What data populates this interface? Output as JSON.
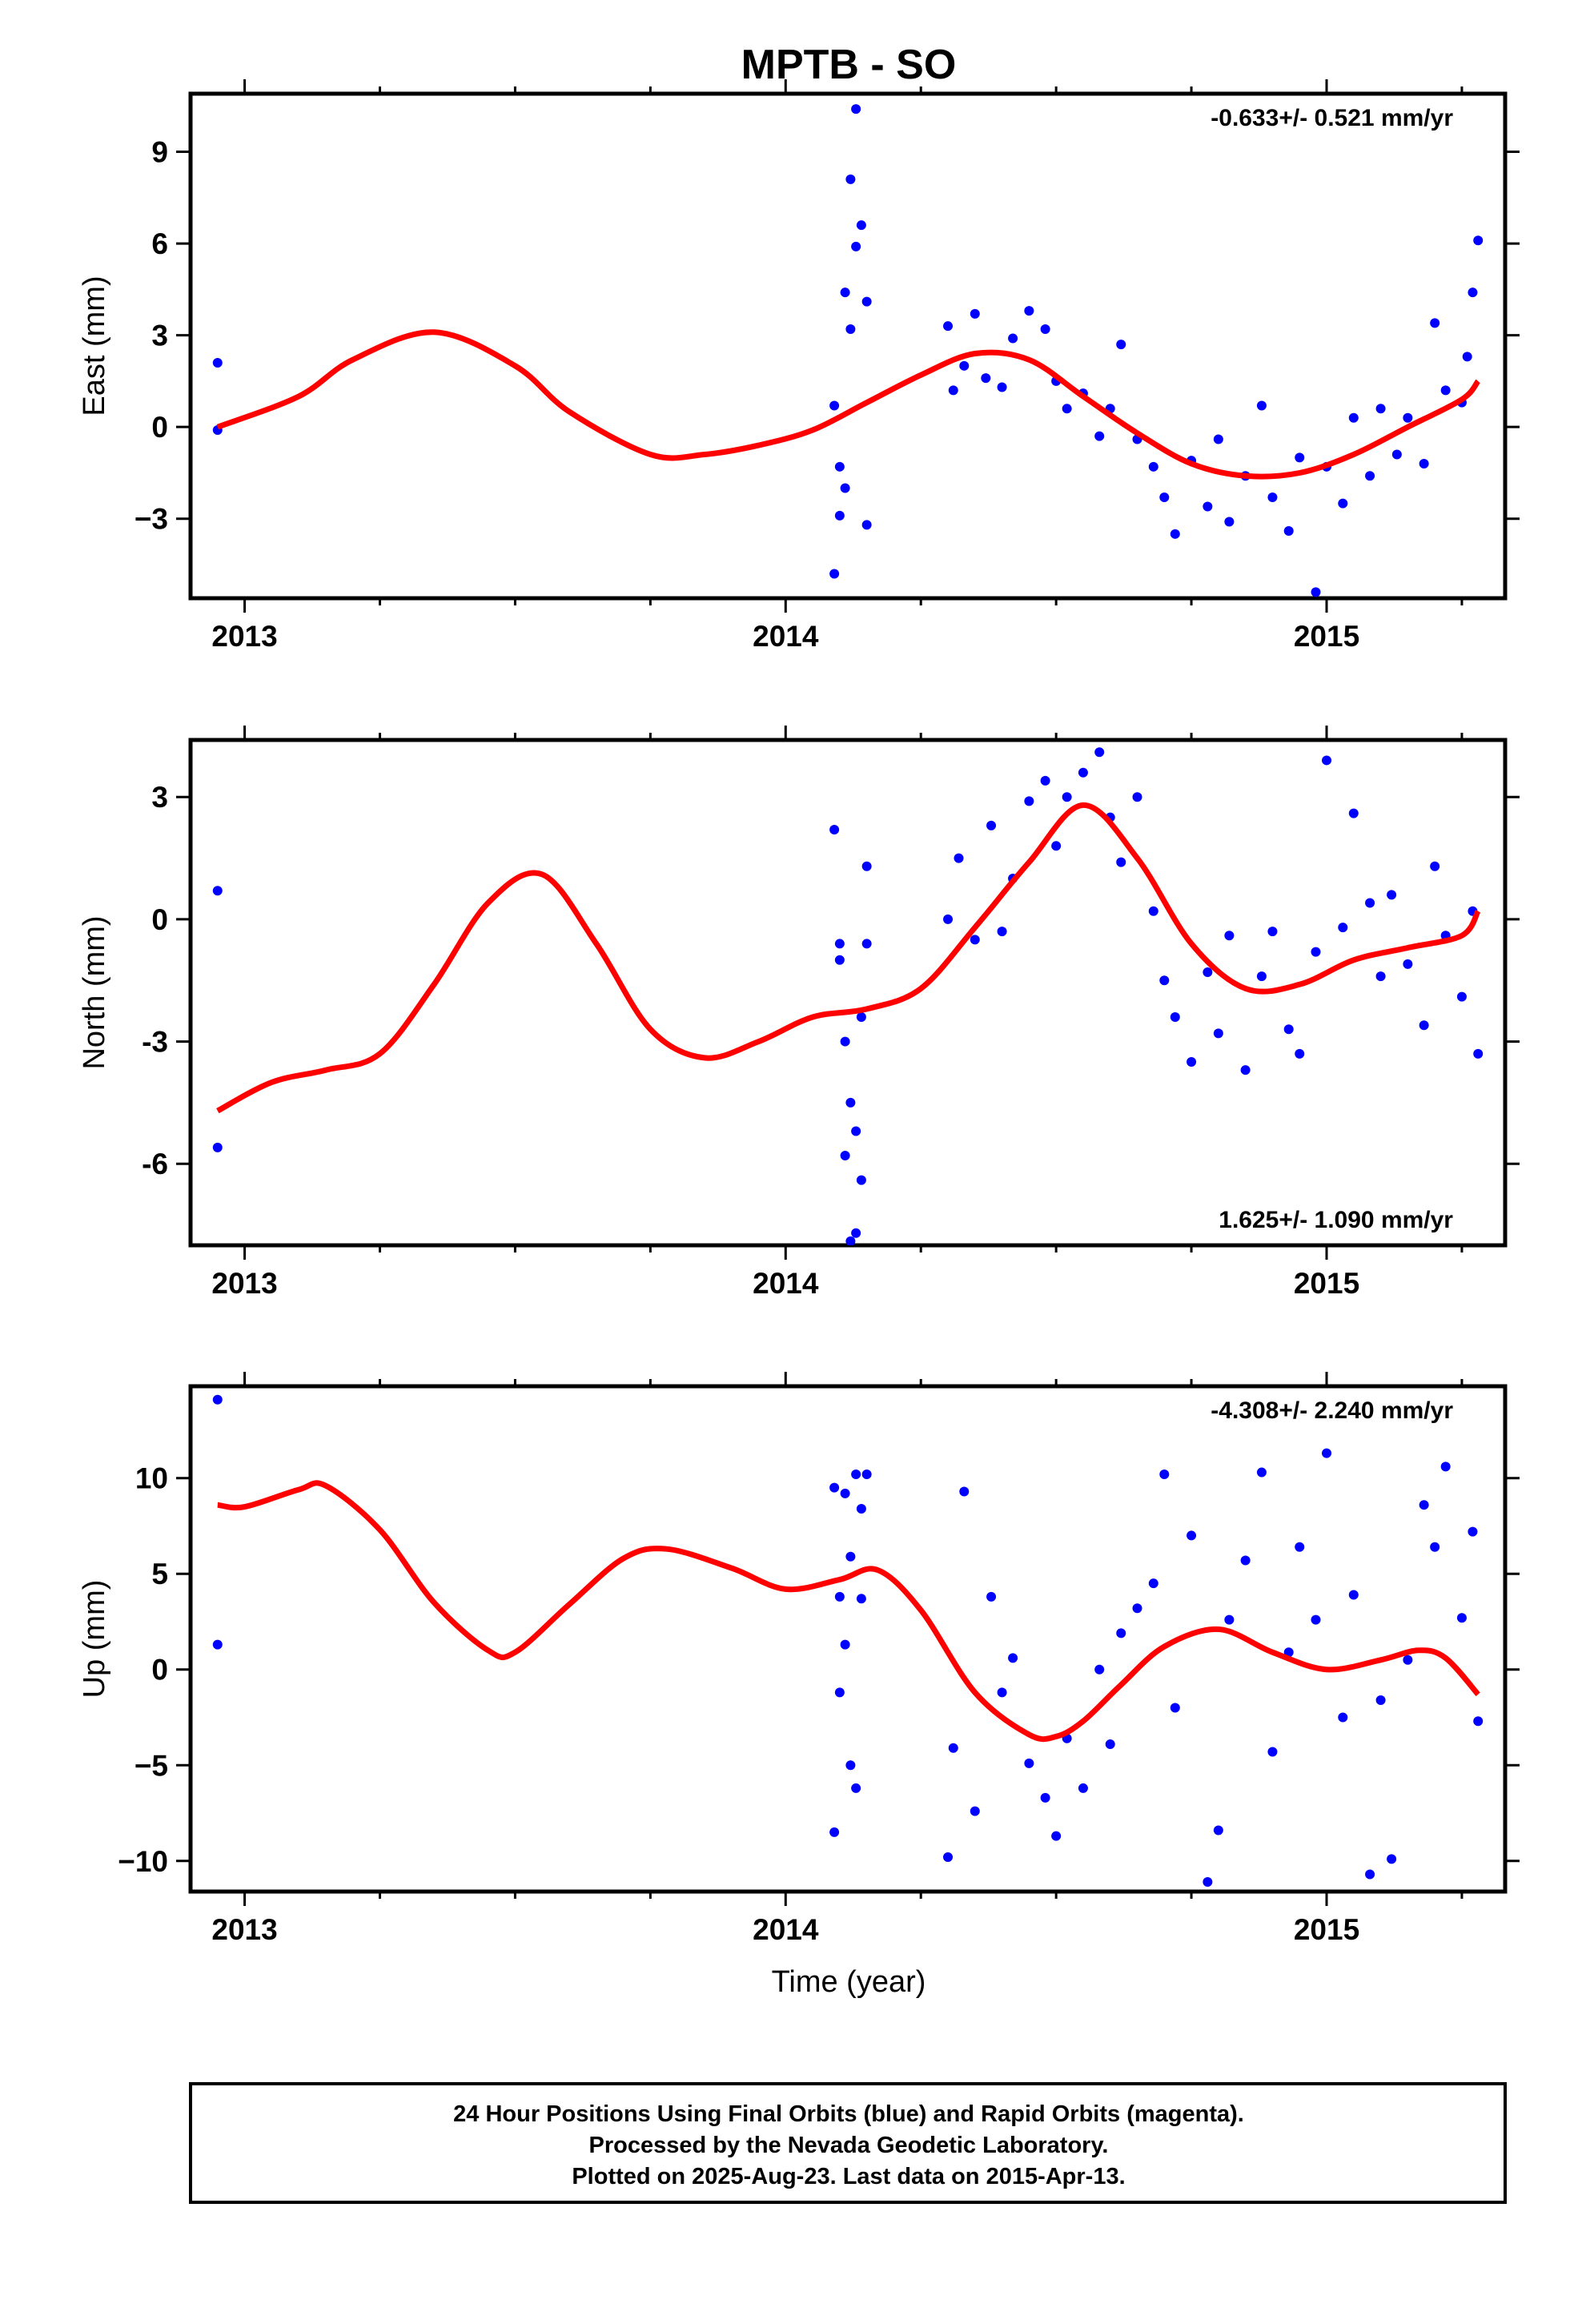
{
  "title": "MPTB - SO",
  "xlabel": "Time (year)",
  "footer": {
    "line1": "24 Hour Positions Using Final Orbits (blue) and Rapid Orbits (magenta).",
    "line2": "Processed by the Nevada Geodetic Laboratory.",
    "line3": "Plotted on 2025-Aug-23. Last data on 2015-Apr-13."
  },
  "colors": {
    "data": "#0000ff",
    "model": "#ff0000",
    "frame": "#000000"
  },
  "chart_data": [
    {
      "type": "scatter",
      "name": "east",
      "ylabel": "East (mm)",
      "rate_label": "-0.633+/- 0.521 mm/yr",
      "rate_position": "top-right",
      "xlim": [
        2012.9,
        2015.33
      ],
      "ylim": [
        -5.6,
        10.9
      ],
      "xticks": [
        2013,
        2014,
        2015
      ],
      "yticks": [
        -3,
        0,
        3,
        6,
        9
      ],
      "ytick_labels": [
        "−3",
        "0",
        "3",
        "6",
        "9"
      ],
      "grid": false,
      "model": {
        "x": [
          2012.95,
          2013.1,
          2013.2,
          2013.35,
          2013.5,
          2013.6,
          2013.75,
          2013.85,
          2013.95,
          2014.05,
          2014.15,
          2014.25,
          2014.35,
          2014.45,
          2014.55,
          2014.65,
          2014.75,
          2014.85,
          2014.95,
          2015.05,
          2015.15,
          2015.25,
          2015.28
        ],
        "y": [
          0.0,
          1.0,
          2.2,
          3.1,
          2.0,
          0.5,
          -0.9,
          -0.9,
          -0.6,
          -0.1,
          0.8,
          1.7,
          2.4,
          2.2,
          1.0,
          -0.2,
          -1.2,
          -1.6,
          -1.5,
          -0.9,
          0.0,
          0.9,
          1.5
        ]
      },
      "points": {
        "x": [
          2012.95,
          2012.95,
          2014.09,
          2014.09,
          2014.1,
          2014.1,
          2014.11,
          2014.11,
          2014.12,
          2014.12,
          2014.13,
          2014.13,
          2014.14,
          2014.15,
          2014.15,
          2014.3,
          2014.31,
          2014.33,
          2014.35,
          2014.37,
          2014.4,
          2014.42,
          2014.45,
          2014.48,
          2014.5,
          2014.52,
          2014.55,
          2014.58,
          2014.6,
          2014.62,
          2014.65,
          2014.68,
          2014.7,
          2014.72,
          2014.75,
          2014.78,
          2014.8,
          2014.82,
          2014.85,
          2014.88,
          2014.9,
          2014.93,
          2014.95,
          2014.98,
          2015.0,
          2015.03,
          2015.05,
          2015.08,
          2015.1,
          2015.13,
          2015.15,
          2015.18,
          2015.2,
          2015.22,
          2015.25,
          2015.26,
          2015.27,
          2015.28
        ],
        "y": [
          2.1,
          -0.1,
          -4.8,
          0.7,
          -1.3,
          -2.9,
          4.4,
          -2.0,
          8.1,
          3.2,
          10.4,
          5.9,
          6.6,
          4.1,
          -3.2,
          3.3,
          1.2,
          2.0,
          3.7,
          1.6,
          1.3,
          2.9,
          3.8,
          3.2,
          1.5,
          0.6,
          1.1,
          -0.3,
          0.6,
          2.7,
          -0.4,
          -1.3,
          -2.3,
          -3.5,
          -1.1,
          -2.6,
          -0.4,
          -3.1,
          -1.6,
          0.7,
          -2.3,
          -3.4,
          -1.0,
          -5.4,
          -1.3,
          -2.5,
          0.3,
          -1.6,
          0.6,
          -0.9,
          0.3,
          -1.2,
          3.4,
          1.2,
          0.8,
          2.3,
          4.4,
          6.1
        ]
      }
    },
    {
      "type": "scatter",
      "name": "north",
      "ylabel": "North (mm)",
      "rate_label": "1.625+/- 1.090 mm/yr",
      "rate_position": "bottom-right",
      "xlim": [
        2012.9,
        2015.33
      ],
      "ylim": [
        -8.0,
        4.4
      ],
      "xticks": [
        2013,
        2014,
        2015
      ],
      "yticks": [
        -6,
        -3,
        0,
        3
      ],
      "ytick_labels": [
        "-6",
        "-3",
        "0",
        "3"
      ],
      "grid": false,
      "model": {
        "x": [
          2012.95,
          2013.05,
          2013.15,
          2013.25,
          2013.35,
          2013.45,
          2013.55,
          2013.65,
          2013.75,
          2013.85,
          2013.95,
          2014.05,
          2014.15,
          2014.25,
          2014.35,
          2014.45,
          2014.55,
          2014.65,
          2014.75,
          2014.85,
          2014.95,
          2015.05,
          2015.15,
          2015.25,
          2015.28
        ],
        "y": [
          -4.7,
          -4.0,
          -3.7,
          -3.3,
          -1.6,
          0.4,
          1.1,
          -0.6,
          -2.7,
          -3.4,
          -3.0,
          -2.4,
          -2.2,
          -1.7,
          -0.2,
          1.4,
          2.8,
          1.5,
          -0.6,
          -1.7,
          -1.6,
          -1.0,
          -0.7,
          -0.4,
          0.2
        ]
      },
      "points": {
        "x": [
          2012.95,
          2012.95,
          2014.09,
          2014.1,
          2014.1,
          2014.11,
          2014.11,
          2014.12,
          2014.12,
          2014.13,
          2014.13,
          2014.14,
          2014.14,
          2014.15,
          2014.15,
          2014.3,
          2014.32,
          2014.35,
          2014.38,
          2014.4,
          2014.42,
          2014.45,
          2014.48,
          2014.5,
          2014.52,
          2014.55,
          2014.58,
          2014.6,
          2014.62,
          2014.65,
          2014.68,
          2014.7,
          2014.72,
          2014.75,
          2014.78,
          2014.8,
          2014.82,
          2014.85,
          2014.88,
          2014.9,
          2014.93,
          2014.95,
          2014.98,
          2015.0,
          2015.03,
          2015.05,
          2015.08,
          2015.1,
          2015.12,
          2015.15,
          2015.18,
          2015.2,
          2015.22,
          2015.25,
          2015.27,
          2015.28
        ],
        "y": [
          0.7,
          -5.6,
          2.2,
          -0.6,
          -1.0,
          -3.0,
          -5.8,
          -7.9,
          -4.5,
          -5.2,
          -7.7,
          -6.4,
          -2.4,
          1.3,
          -0.6,
          0.0,
          1.5,
          -0.5,
          2.3,
          -0.3,
          1.0,
          2.9,
          3.4,
          1.8,
          3.0,
          3.6,
          4.1,
          2.5,
          1.4,
          3.0,
          0.2,
          -1.5,
          -2.4,
          -3.5,
          -1.3,
          -2.8,
          -0.4,
          -3.7,
          -1.4,
          -0.3,
          -2.7,
          -3.3,
          -0.8,
          3.9,
          -0.2,
          2.6,
          0.4,
          -1.4,
          0.6,
          -1.1,
          -2.6,
          1.3,
          -0.4,
          -1.9,
          0.2,
          -3.3
        ]
      }
    },
    {
      "type": "scatter",
      "name": "up",
      "ylabel": "Up (mm)",
      "rate_label": "-4.308+/- 2.240 mm/yr",
      "rate_position": "top-right",
      "xlim": [
        2012.9,
        2015.33
      ],
      "ylim": [
        -11.6,
        14.8
      ],
      "xticks": [
        2013,
        2014,
        2015
      ],
      "yticks": [
        -10,
        -5,
        0,
        5,
        10
      ],
      "ytick_labels": [
        "−10",
        "−5",
        "0",
        "5",
        "10"
      ],
      "grid": false,
      "model": {
        "x": [
          2012.95,
          2013.0,
          2013.1,
          2013.15,
          2013.25,
          2013.35,
          2013.45,
          2013.5,
          2013.6,
          2013.7,
          2013.78,
          2013.9,
          2014.0,
          2014.1,
          2014.17,
          2014.25,
          2014.35,
          2014.45,
          2014.5,
          2014.55,
          2014.62,
          2014.7,
          2014.8,
          2014.9,
          2015.0,
          2015.1,
          2015.17,
          2015.22,
          2015.28
        ],
        "y": [
          8.6,
          8.5,
          9.4,
          9.6,
          7.3,
          3.5,
          1.0,
          0.9,
          3.4,
          5.8,
          6.3,
          5.3,
          4.2,
          4.7,
          5.2,
          3.1,
          -1.2,
          -3.4,
          -3.5,
          -2.7,
          -0.8,
          1.2,
          2.1,
          0.9,
          0.0,
          0.5,
          1.0,
          0.6,
          -1.3
        ]
      },
      "points": {
        "x": [
          2012.95,
          2012.95,
          2014.09,
          2014.09,
          2014.1,
          2014.1,
          2014.11,
          2014.11,
          2014.12,
          2014.12,
          2014.13,
          2014.13,
          2014.14,
          2014.14,
          2014.15,
          2014.3,
          2014.31,
          2014.33,
          2014.35,
          2014.38,
          2014.4,
          2014.42,
          2014.45,
          2014.48,
          2014.5,
          2014.52,
          2014.55,
          2014.58,
          2014.6,
          2014.62,
          2014.65,
          2014.68,
          2014.7,
          2014.72,
          2014.75,
          2014.78,
          2014.8,
          2014.82,
          2014.85,
          2014.88,
          2014.9,
          2014.93,
          2014.95,
          2014.98,
          2015.0,
          2015.03,
          2015.05,
          2015.08,
          2015.1,
          2015.12,
          2015.15,
          2015.18,
          2015.2,
          2015.22,
          2015.25,
          2015.27,
          2015.28
        ],
        "y": [
          14.1,
          1.3,
          -8.5,
          9.5,
          3.8,
          -1.2,
          1.3,
          9.2,
          5.9,
          -5.0,
          10.2,
          -6.2,
          3.7,
          8.4,
          10.2,
          -9.8,
          -4.1,
          9.3,
          -7.4,
          3.8,
          -1.2,
          0.6,
          -4.9,
          -6.7,
          -8.7,
          -3.6,
          -6.2,
          0.0,
          -3.9,
          1.9,
          3.2,
          4.5,
          10.2,
          -2.0,
          7.0,
          -11.1,
          -8.4,
          2.6,
          5.7,
          10.3,
          -4.3,
          0.9,
          6.4,
          2.6,
          11.3,
          -2.5,
          3.9,
          -10.7,
          -1.6,
          -9.9,
          0.5,
          8.6,
          6.4,
          10.6,
          2.7,
          7.2,
          -2.7
        ]
      }
    }
  ]
}
